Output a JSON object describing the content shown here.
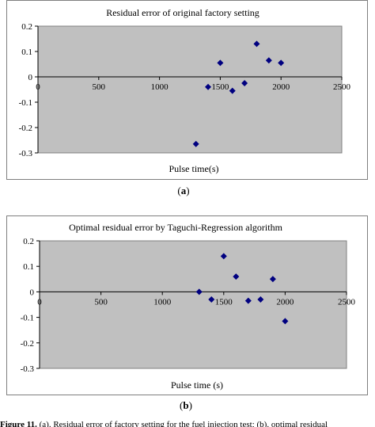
{
  "chart_data": [
    {
      "type": "scatter",
      "title": "Residual error of original factory setting",
      "xlabel": "Pulse time(s)",
      "ylabel": "",
      "xlim": [
        0,
        2500
      ],
      "ylim": [
        -0.3,
        0.2
      ],
      "x_ticks": [
        "0",
        "500",
        "1000",
        "1500",
        "2000",
        "2500"
      ],
      "y_ticks": [
        "0.2",
        "0.1",
        "0",
        "-0.1",
        "-0.2",
        "-0.3"
      ],
      "grid": false,
      "legend": "none",
      "plot_background": "#c0c0c0",
      "marker_color": "#000080",
      "marker": "diamond",
      "series": [
        {
          "x": [
            1300,
            1400,
            1500,
            1600,
            1700,
            1800,
            1900,
            2000
          ],
          "y": [
            -0.265,
            -0.04,
            0.055,
            -0.055,
            -0.025,
            0.13,
            0.065,
            0.055
          ]
        }
      ],
      "panel_label": "a"
    },
    {
      "type": "scatter",
      "title": "Optimal residual error by Taguchi-Regression algorithm",
      "xlabel": "Pulse time (s)",
      "ylabel": "",
      "xlim": [
        0,
        2500
      ],
      "ylim": [
        -0.3,
        0.2
      ],
      "x_ticks": [
        "0",
        "500",
        "1000",
        "1500",
        "2000",
        "2500"
      ],
      "y_ticks": [
        "0.2",
        "0.1",
        "0",
        "-0.1",
        "-0.2",
        "-0.3"
      ],
      "grid": false,
      "legend": "none",
      "plot_background": "#c0c0c0",
      "marker_color": "#000080",
      "marker": "diamond",
      "series": [
        {
          "x": [
            1300,
            1400,
            1500,
            1600,
            1700,
            1800,
            1900,
            2000
          ],
          "y": [
            0.0,
            -0.03,
            0.14,
            0.06,
            -0.035,
            -0.03,
            0.05,
            -0.115
          ]
        }
      ],
      "panel_label": "b"
    }
  ],
  "caption": {
    "label": "Figure 11.",
    "text": " (a). Residual error of factory setting for the fuel injection test; (b). optimal residual"
  }
}
